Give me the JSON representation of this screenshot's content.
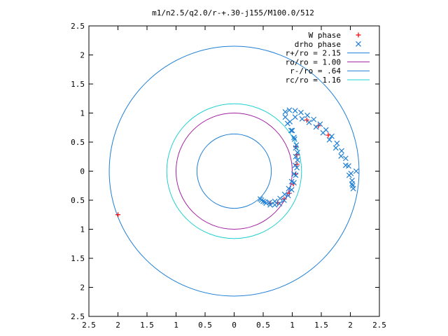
{
  "chart_data": {
    "type": "scatter",
    "title": "m1/n2.5/q2.0/r-+.30-j155/M100.0/512",
    "xlabel": "",
    "ylabel": "",
    "xlim": [
      -2.5,
      2.5
    ],
    "ylim": [
      -2.5,
      2.5
    ],
    "x_ticks": [
      -2.5,
      -2,
      -1.5,
      -1,
      -0.5,
      0,
      0.5,
      1,
      1.5,
      2,
      2.5
    ],
    "y_ticks": [
      -2.5,
      -2,
      -1.5,
      -1,
      -0.5,
      0,
      0.5,
      1,
      1.5,
      2,
      2.5
    ],
    "x_tick_labels": [
      "2.5",
      "2",
      "1.5",
      "1",
      "0.5",
      "0",
      "0.5",
      "1",
      "1.5",
      "2",
      "2.5"
    ],
    "y_tick_labels": [
      "2.5",
      "2",
      "1.5",
      "1",
      "0.5",
      "0",
      "0.5",
      "1",
      "1.5",
      "2",
      "2.5"
    ],
    "grid": false,
    "legend_position": "top-right",
    "series": [
      {
        "name": "W phase",
        "marker": "+",
        "color": "#ff0000",
        "points": [
          [
            -2.0,
            -0.75
          ],
          [
            0.62,
            -0.55
          ],
          [
            0.75,
            -0.54
          ],
          [
            0.86,
            -0.48
          ],
          [
            0.95,
            -0.38
          ],
          [
            1.02,
            -0.22
          ],
          [
            1.06,
            -0.05
          ],
          [
            1.08,
            0.12
          ],
          [
            1.08,
            0.28
          ],
          [
            1.06,
            0.42
          ],
          [
            1.25,
            0.88
          ],
          [
            1.45,
            0.78
          ],
          [
            1.62,
            0.62
          ]
        ]
      },
      {
        "name": "drho phase",
        "marker": "x",
        "color": "#1f7fd4",
        "points": [
          [
            2.1,
            0.0
          ],
          [
            0.45,
            -0.48
          ],
          [
            0.5,
            -0.52
          ],
          [
            0.55,
            -0.55
          ],
          [
            0.62,
            -0.58
          ],
          [
            0.7,
            -0.58
          ],
          [
            0.78,
            -0.56
          ],
          [
            0.86,
            -0.5
          ],
          [
            0.93,
            -0.42
          ],
          [
            0.99,
            -0.32
          ],
          [
            1.03,
            -0.2
          ],
          [
            1.06,
            -0.07
          ],
          [
            1.08,
            0.06
          ],
          [
            1.09,
            0.19
          ],
          [
            1.09,
            0.32
          ],
          [
            1.07,
            0.45
          ],
          [
            1.03,
            0.58
          ],
          [
            0.98,
            0.7
          ],
          [
            0.92,
            0.82
          ],
          [
            0.88,
            0.93
          ],
          [
            0.88,
            1.02
          ],
          [
            0.95,
            1.05
          ],
          [
            1.05,
            1.04
          ],
          [
            1.15,
            1.01
          ],
          [
            1.26,
            0.96
          ],
          [
            1.37,
            0.89
          ],
          [
            1.48,
            0.81
          ],
          [
            1.58,
            0.71
          ],
          [
            1.68,
            0.6
          ],
          [
            1.77,
            0.48
          ],
          [
            1.85,
            0.35
          ],
          [
            1.92,
            0.22
          ],
          [
            1.97,
            0.09
          ],
          [
            2.01,
            -0.04
          ],
          [
            2.03,
            -0.16
          ],
          [
            2.04,
            -0.25
          ],
          [
            2.05,
            -0.3
          ],
          [
            2.03,
            -0.22
          ],
          [
            1.98,
            -0.07
          ],
          [
            1.92,
            0.1
          ],
          [
            1.84,
            0.26
          ],
          [
            1.75,
            0.4
          ],
          [
            1.64,
            0.54
          ],
          [
            1.53,
            0.66
          ],
          [
            1.41,
            0.76
          ],
          [
            1.29,
            0.84
          ],
          [
            1.17,
            0.9
          ],
          [
            1.05,
            0.93
          ],
          [
            0.96,
            0.85
          ],
          [
            1.0,
            0.7
          ],
          [
            1.04,
            0.55
          ],
          [
            1.06,
            0.4
          ],
          [
            1.06,
            0.25
          ],
          [
            1.05,
            0.1
          ],
          [
            1.03,
            -0.05
          ],
          [
            0.99,
            -0.18
          ],
          [
            0.94,
            -0.3
          ],
          [
            0.87,
            -0.4
          ],
          [
            0.79,
            -0.47
          ],
          [
            0.7,
            -0.52
          ],
          [
            0.61,
            -0.54
          ],
          [
            0.53,
            -0.53
          ],
          [
            0.47,
            -0.5
          ]
        ]
      },
      {
        "name": "r+/ro = 2.15",
        "type": "circle",
        "radius": 2.15,
        "color": "#1f7fd4"
      },
      {
        "name": "ro/ro = 1.00",
        "type": "circle",
        "radius": 1.0,
        "color": "#a020a0"
      },
      {
        "name": "r-/ro = .64",
        "type": "circle",
        "radius": 0.64,
        "color": "#1f7fd4"
      },
      {
        "name": "rc/ro = 1.16",
        "type": "circle",
        "radius": 1.16,
        "color": "#20d0d0"
      }
    ]
  }
}
